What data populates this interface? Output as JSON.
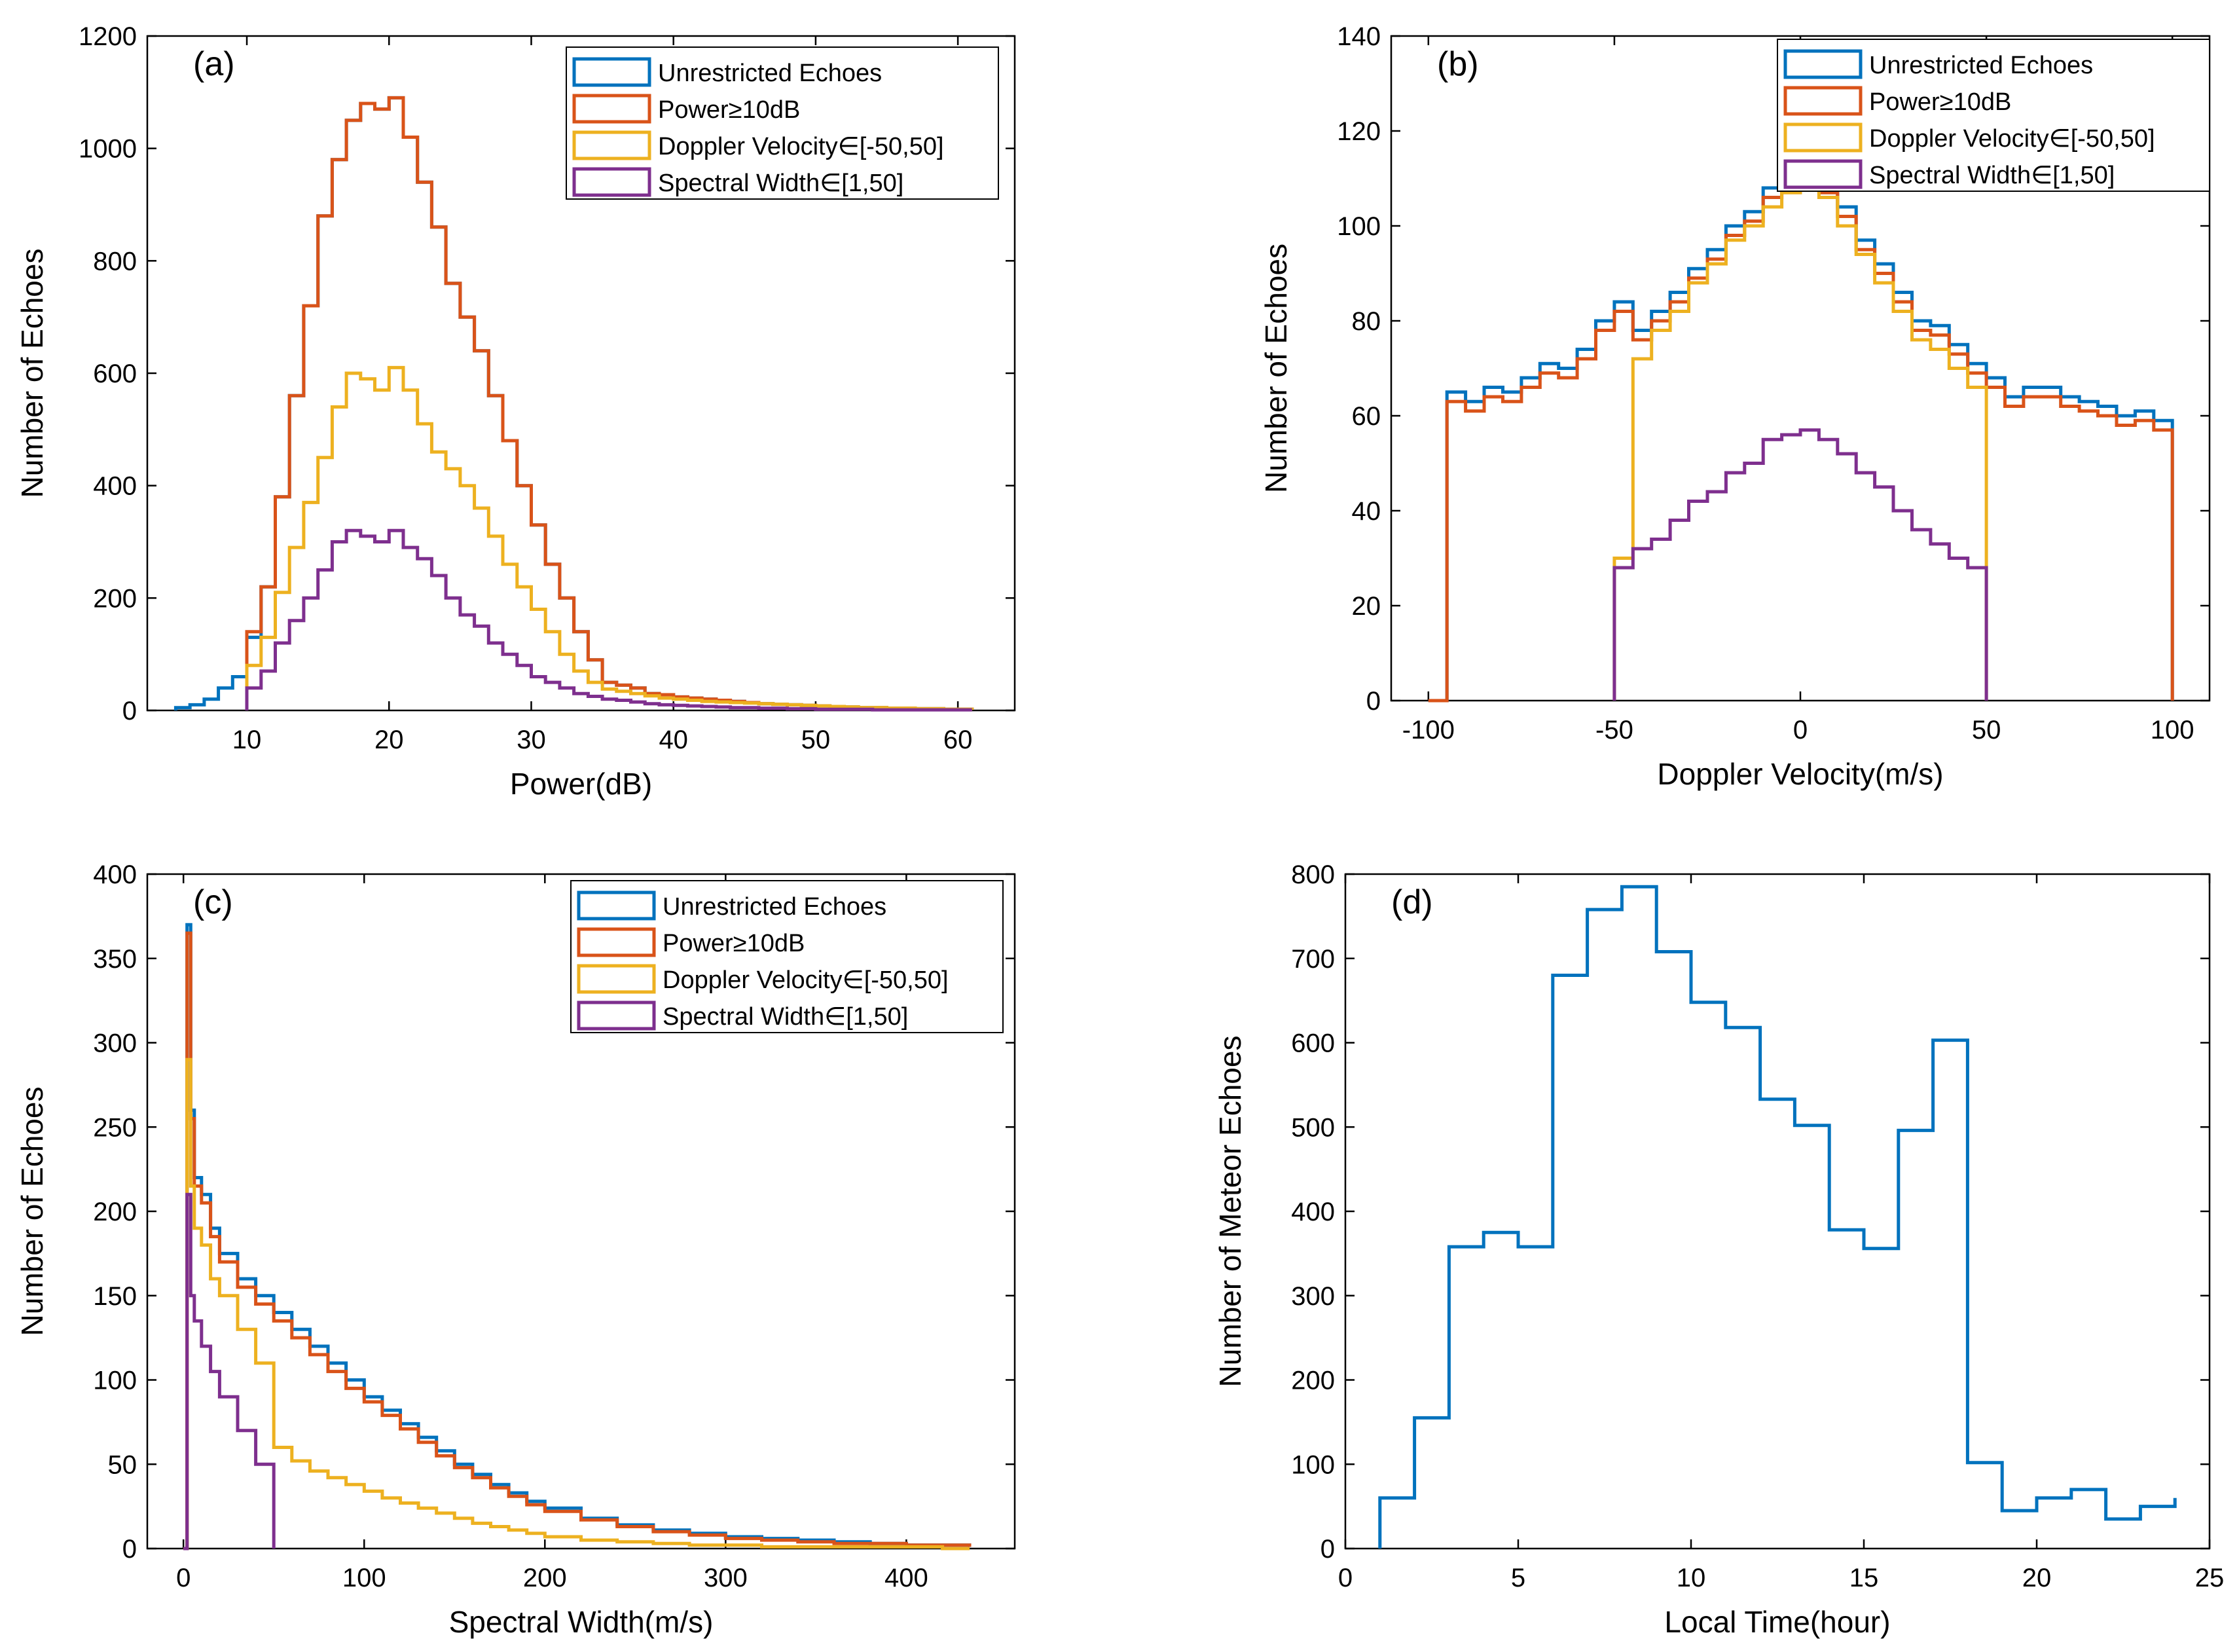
{
  "figure": {
    "colors": {
      "unrestricted": "#0072BD",
      "power": "#D95319",
      "doppler": "#EDB120",
      "spectral": "#7E2F8E",
      "axis": "#000000"
    }
  },
  "chart_data": [
    {
      "panel": "(a)",
      "type": "histogram-stairs",
      "xlabel": "Power(dB)",
      "ylabel": "Number of Echoes",
      "xlim": [
        3,
        64
      ],
      "ylim": [
        0,
        1200
      ],
      "xticks": [
        10,
        20,
        30,
        40,
        50,
        60
      ],
      "yticks": [
        0,
        200,
        400,
        600,
        800,
        1000,
        1200
      ],
      "legend_position": "top-right",
      "series": [
        {
          "name": "Unrestricted Echoes",
          "color_key": "unrestricted",
          "x": [
            5,
            6,
            7,
            8,
            9,
            10,
            11,
            12,
            13,
            14,
            15,
            16,
            17,
            18,
            19,
            20,
            21,
            22,
            23,
            24,
            25,
            26,
            27,
            28,
            29,
            30,
            31,
            32,
            33,
            34,
            35,
            36,
            37,
            38,
            39,
            40,
            41,
            42,
            43,
            44,
            45,
            46,
            47,
            48,
            49,
            50,
            51,
            52,
            53,
            54,
            55,
            56,
            57,
            58,
            59,
            60,
            61
          ],
          "y": [
            5,
            10,
            20,
            40,
            60,
            130,
            220,
            380,
            560,
            720,
            880,
            980,
            1050,
            1080,
            1070,
            1090,
            1020,
            940,
            860,
            760,
            700,
            640,
            560,
            480,
            400,
            330,
            260,
            200,
            140,
            90,
            50,
            45,
            40,
            30,
            28,
            24,
            22,
            20,
            18,
            16,
            14,
            12,
            11,
            10,
            9,
            8,
            7,
            6,
            5,
            5,
            4,
            4,
            3,
            3,
            2,
            2,
            1
          ]
        },
        {
          "name": "Power≥10dB",
          "color_key": "power",
          "x": [
            10,
            11,
            12,
            13,
            14,
            15,
            16,
            17,
            18,
            19,
            20,
            21,
            22,
            23,
            24,
            25,
            26,
            27,
            28,
            29,
            30,
            31,
            32,
            33,
            34,
            35,
            36,
            37,
            38,
            39,
            40,
            41,
            42,
            43,
            44,
            45,
            46,
            47,
            48,
            49,
            50,
            51,
            52,
            53,
            54,
            55,
            56,
            57,
            58,
            59,
            60,
            61
          ],
          "y": [
            140,
            220,
            380,
            560,
            720,
            880,
            980,
            1050,
            1080,
            1070,
            1090,
            1020,
            940,
            860,
            760,
            700,
            640,
            560,
            480,
            400,
            330,
            260,
            200,
            140,
            90,
            50,
            45,
            40,
            30,
            28,
            24,
            22,
            20,
            18,
            16,
            14,
            12,
            11,
            10,
            9,
            8,
            7,
            6,
            5,
            5,
            4,
            4,
            3,
            3,
            2,
            2,
            1
          ]
        },
        {
          "name": "Doppler Velocity∈[-50,50]",
          "color_key": "doppler",
          "x": [
            10,
            11,
            12,
            13,
            14,
            15,
            16,
            17,
            18,
            19,
            20,
            21,
            22,
            23,
            24,
            25,
            26,
            27,
            28,
            29,
            30,
            31,
            32,
            33,
            34,
            35,
            36,
            37,
            38,
            39,
            40,
            41,
            42,
            43,
            44,
            45,
            46,
            47,
            48,
            49,
            50,
            51,
            52,
            53,
            54,
            55,
            56,
            57,
            58,
            59,
            60,
            61
          ],
          "y": [
            80,
            130,
            210,
            290,
            370,
            450,
            540,
            600,
            590,
            570,
            610,
            570,
            510,
            460,
            430,
            400,
            360,
            310,
            260,
            220,
            180,
            140,
            100,
            70,
            50,
            38,
            34,
            30,
            26,
            22,
            20,
            18,
            16,
            15,
            14,
            13,
            12,
            11,
            10,
            9,
            8,
            7,
            6,
            5,
            5,
            4,
            4,
            3,
            3,
            2,
            2,
            1
          ]
        },
        {
          "name": "Spectral Width∈[1,50]",
          "color_key": "spectral",
          "x": [
            10,
            11,
            12,
            13,
            14,
            15,
            16,
            17,
            18,
            19,
            20,
            21,
            22,
            23,
            24,
            25,
            26,
            27,
            28,
            29,
            30,
            31,
            32,
            33,
            34,
            35,
            36,
            37,
            38,
            39,
            40,
            41,
            42,
            43,
            44,
            45,
            46,
            47,
            48,
            49,
            50,
            51,
            52,
            53,
            54,
            55,
            56,
            57,
            58,
            59,
            60,
            61
          ],
          "y": [
            40,
            70,
            120,
            160,
            200,
            250,
            300,
            320,
            310,
            300,
            320,
            290,
            270,
            240,
            200,
            170,
            150,
            120,
            100,
            80,
            60,
            50,
            40,
            30,
            25,
            20,
            18,
            15,
            12,
            10,
            9,
            8,
            7,
            6,
            5,
            5,
            4,
            4,
            3,
            3,
            2,
            2,
            2,
            2,
            1,
            1,
            1,
            1,
            1,
            1,
            1,
            1
          ]
        }
      ]
    },
    {
      "panel": "(b)",
      "type": "histogram-stairs",
      "xlabel": "Doppler Velocity(m/s)",
      "ylabel": "Number of Echoes",
      "xlim": [
        -110,
        110
      ],
      "ylim": [
        0,
        140
      ],
      "xticks": [
        -100,
        -50,
        0,
        50,
        100
      ],
      "yticks": [
        0,
        20,
        40,
        60,
        80,
        100,
        120,
        140
      ],
      "legend_position": "top-right",
      "series": [
        {
          "name": "Unrestricted Echoes",
          "color_key": "unrestricted",
          "x": [
            -100,
            -95,
            -90,
            -85,
            -80,
            -75,
            -70,
            -65,
            -60,
            -55,
            -50,
            -45,
            -40,
            -35,
            -30,
            -25,
            -20,
            -15,
            -10,
            -5,
            0,
            5,
            10,
            15,
            20,
            25,
            30,
            35,
            40,
            45,
            50,
            55,
            60,
            65,
            70,
            75,
            80,
            85,
            90,
            95,
            100
          ],
          "y": [
            0,
            65,
            63,
            66,
            65,
            68,
            71,
            70,
            74,
            80,
            84,
            78,
            82,
            86,
            91,
            95,
            100,
            103,
            108,
            110,
            112,
            109,
            104,
            97,
            92,
            86,
            80,
            79,
            75,
            71,
            68,
            64,
            66,
            66,
            64,
            63,
            62,
            60,
            61,
            59,
            0
          ]
        },
        {
          "name": "Power≥10dB",
          "color_key": "power",
          "x": [
            -100,
            -95,
            -90,
            -85,
            -80,
            -75,
            -70,
            -65,
            -60,
            -55,
            -50,
            -45,
            -40,
            -35,
            -30,
            -25,
            -20,
            -15,
            -10,
            -5,
            0,
            5,
            10,
            15,
            20,
            25,
            30,
            35,
            40,
            45,
            50,
            55,
            60,
            65,
            70,
            75,
            80,
            85,
            90,
            95,
            100
          ],
          "y": [
            0,
            63,
            61,
            64,
            63,
            66,
            69,
            68,
            72,
            78,
            82,
            76,
            80,
            84,
            89,
            93,
            98,
            101,
            106,
            108,
            110,
            107,
            102,
            95,
            90,
            84,
            78,
            77,
            73,
            69,
            66,
            62,
            64,
            64,
            62,
            61,
            60,
            58,
            59,
            57,
            0
          ]
        },
        {
          "name": "Doppler Velocity∈[-50,50]",
          "color_key": "doppler",
          "x": [
            -50,
            -45,
            -40,
            -35,
            -30,
            -25,
            -20,
            -15,
            -10,
            -5,
            0,
            5,
            10,
            15,
            20,
            25,
            30,
            35,
            40,
            45,
            50
          ],
          "y": [
            30,
            72,
            78,
            82,
            88,
            92,
            97,
            100,
            104,
            107,
            109,
            106,
            100,
            94,
            88,
            82,
            76,
            74,
            70,
            66,
            0
          ]
        },
        {
          "name": "Spectral Width∈[1,50]",
          "color_key": "spectral",
          "x": [
            -50,
            -45,
            -40,
            -35,
            -30,
            -25,
            -20,
            -15,
            -10,
            -5,
            0,
            5,
            10,
            15,
            20,
            25,
            30,
            35,
            40,
            45,
            50
          ],
          "y": [
            28,
            32,
            34,
            38,
            42,
            44,
            48,
            50,
            55,
            56,
            57,
            55,
            52,
            48,
            45,
            40,
            36,
            33,
            30,
            28,
            0
          ]
        }
      ]
    },
    {
      "panel": "(c)",
      "type": "histogram-stairs",
      "xlabel": "Spectral Width(m/s)",
      "ylabel": "Number of Echoes",
      "xlim": [
        -20,
        460
      ],
      "ylim": [
        0,
        400
      ],
      "xticks": [
        0,
        100,
        200,
        300,
        400
      ],
      "yticks": [
        0,
        50,
        100,
        150,
        200,
        250,
        300,
        350,
        400
      ],
      "legend_position": "top-right",
      "series": [
        {
          "name": "Unrestricted Echoes",
          "color_key": "unrestricted",
          "x": [
            0,
            2,
            4,
            6,
            10,
            15,
            20,
            30,
            40,
            50,
            60,
            70,
            80,
            90,
            100,
            110,
            120,
            130,
            140,
            150,
            160,
            170,
            180,
            190,
            200,
            220,
            240,
            260,
            280,
            300,
            320,
            340,
            360,
            380,
            400,
            420,
            435
          ],
          "y": [
            0,
            370,
            260,
            220,
            210,
            190,
            175,
            160,
            150,
            140,
            130,
            120,
            110,
            100,
            90,
            82,
            74,
            66,
            58,
            50,
            44,
            38,
            33,
            28,
            24,
            18,
            14,
            11,
            9,
            7,
            6,
            5,
            4,
            3,
            2,
            2,
            1
          ]
        },
        {
          "name": "Power≥10dB",
          "color_key": "power",
          "x": [
            0,
            2,
            4,
            6,
            10,
            15,
            20,
            30,
            40,
            50,
            60,
            70,
            80,
            90,
            100,
            110,
            120,
            130,
            140,
            150,
            160,
            170,
            180,
            190,
            200,
            220,
            240,
            260,
            280,
            300,
            320,
            340,
            360,
            380,
            400,
            420,
            435
          ],
          "y": [
            0,
            365,
            255,
            215,
            205,
            185,
            170,
            155,
            145,
            135,
            125,
            115,
            105,
            95,
            87,
            79,
            71,
            63,
            55,
            48,
            42,
            36,
            31,
            26,
            22,
            17,
            13,
            10,
            8,
            6,
            5,
            4,
            3,
            3,
            2,
            2,
            1
          ]
        },
        {
          "name": "Doppler Velocity∈[-50,50]",
          "color_key": "doppler",
          "x": [
            0,
            2,
            4,
            6,
            10,
            15,
            20,
            30,
            40,
            50,
            60,
            70,
            80,
            90,
            100,
            110,
            120,
            130,
            140,
            150,
            160,
            170,
            180,
            190,
            200,
            220,
            240,
            260,
            280,
            300,
            320,
            340,
            360,
            380,
            400,
            420,
            435
          ],
          "y": [
            0,
            290,
            215,
            190,
            180,
            160,
            150,
            130,
            110,
            60,
            52,
            46,
            42,
            38,
            34,
            30,
            27,
            24,
            21,
            18,
            15,
            13,
            11,
            9,
            7,
            5,
            4,
            3,
            2,
            2,
            1,
            1,
            1,
            1,
            1,
            0,
            0
          ]
        },
        {
          "name": "Spectral Width∈[1,50]",
          "color_key": "spectral",
          "x": [
            0,
            2,
            4,
            6,
            10,
            15,
            20,
            30,
            40,
            50
          ],
          "y": [
            0,
            210,
            150,
            135,
            120,
            105,
            90,
            70,
            50,
            0
          ]
        }
      ]
    },
    {
      "panel": "(d)",
      "type": "histogram-stairs",
      "xlabel": "Local Time(hour)",
      "ylabel": "Number of Meteor Echoes",
      "xlim": [
        0,
        25
      ],
      "ylim": [
        0,
        800
      ],
      "xticks": [
        0,
        5,
        10,
        15,
        20,
        25
      ],
      "yticks": [
        0,
        100,
        200,
        300,
        400,
        500,
        600,
        700,
        800
      ],
      "series": [
        {
          "name": "Meteor Echoes",
          "color_key": "unrestricted",
          "x": [
            1,
            2,
            3,
            4,
            5,
            6,
            7,
            8,
            9,
            10,
            11,
            12,
            13,
            14,
            15,
            16,
            17,
            18,
            19,
            20,
            21,
            22,
            23,
            24
          ],
          "y": [
            60,
            155,
            358,
            375,
            358,
            680,
            758,
            785,
            708,
            648,
            618,
            533,
            502,
            378,
            356,
            496,
            603,
            102,
            45,
            60,
            70,
            35,
            50,
            60
          ]
        }
      ]
    }
  ]
}
